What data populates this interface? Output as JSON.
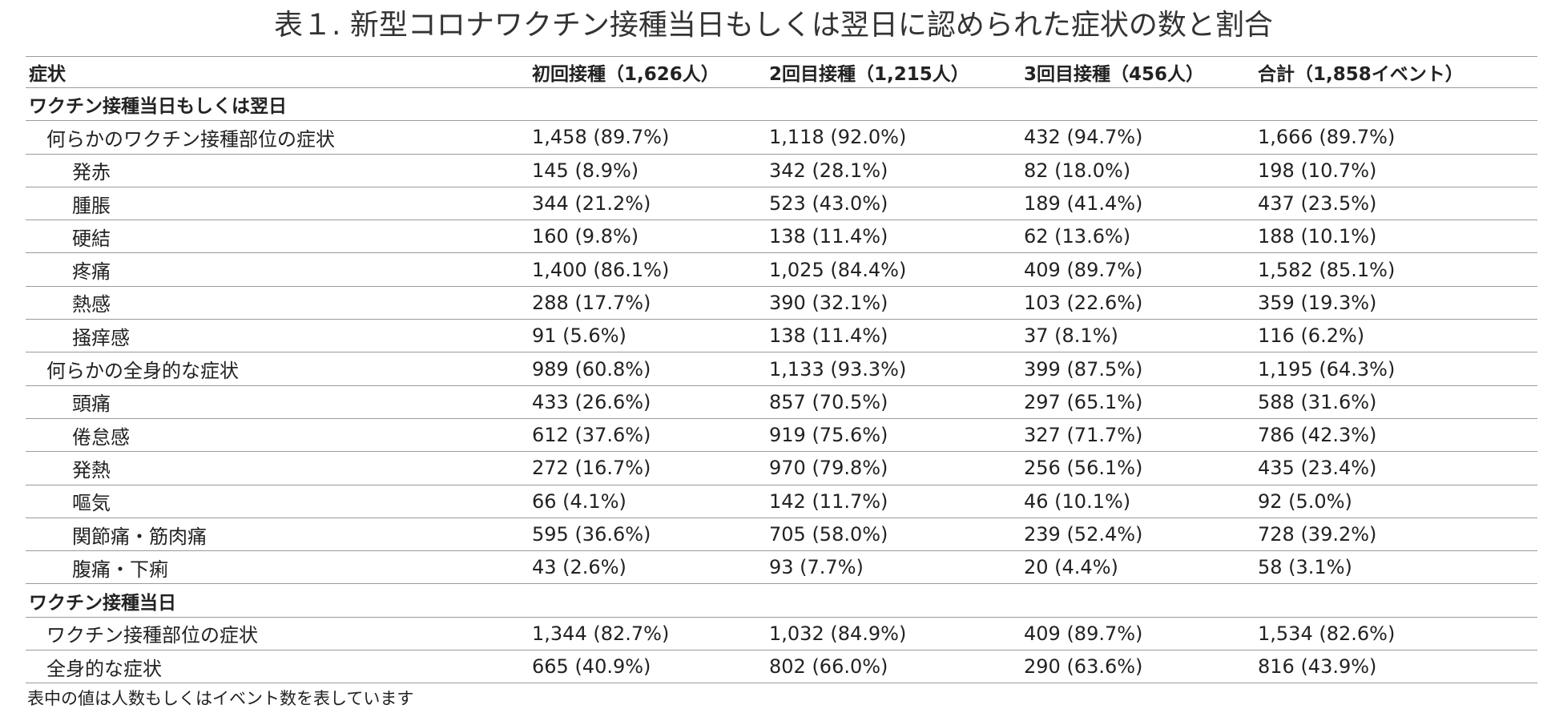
{
  "title": "表１. 新型コロナワクチン接種当日もしくは翌日に認められた症状の数と割合",
  "columns": [
    "症状",
    "初回接種（1,626人）",
    "2回目接種（1,215人）",
    "3回目接種（456人）",
    "合計（1,858イベント）"
  ],
  "sections": [
    {
      "label": "ワクチン接種当日もしくは翌日",
      "rows": [
        {
          "level": 1,
          "label": "何らかのワクチン接種部位の症状",
          "values": [
            "1,458 (89.7%)",
            "1,118 (92.0%)",
            "432 (94.7%)",
            "1,666 (89.7%)"
          ]
        },
        {
          "level": 2,
          "label": "発赤",
          "values": [
            "145 (8.9%)",
            "342 (28.1%)",
            "82 (18.0%)",
            "198 (10.7%)"
          ]
        },
        {
          "level": 2,
          "label": "腫脹",
          "values": [
            "344 (21.2%)",
            "523 (43.0%)",
            "189 (41.4%)",
            "437 (23.5%)"
          ]
        },
        {
          "level": 2,
          "label": "硬結",
          "values": [
            "160 (9.8%)",
            "138 (11.4%)",
            "62 (13.6%)",
            "188 (10.1%)"
          ]
        },
        {
          "level": 2,
          "label": "疼痛",
          "values": [
            "1,400 (86.1%)",
            "1,025 (84.4%)",
            "409 (89.7%)",
            "1,582 (85.1%)"
          ]
        },
        {
          "level": 2,
          "label": "熱感",
          "values": [
            "288 (17.7%)",
            "390 (32.1%)",
            "103 (22.6%)",
            "359 (19.3%)"
          ]
        },
        {
          "level": 2,
          "label": "掻痒感",
          "values": [
            "91 (5.6%)",
            "138 (11.4%)",
            "37 (8.1%)",
            "116 (6.2%)"
          ]
        },
        {
          "level": 1,
          "label": "何らかの全身的な症状",
          "values": [
            "989 (60.8%)",
            "1,133 (93.3%)",
            "399 (87.5%)",
            "1,195 (64.3%)"
          ]
        },
        {
          "level": 2,
          "label": "頭痛",
          "values": [
            "433 (26.6%)",
            "857 (70.5%)",
            "297 (65.1%)",
            "588 (31.6%)"
          ]
        },
        {
          "level": 2,
          "label": "倦怠感",
          "values": [
            "612 (37.6%)",
            "919 (75.6%)",
            "327 (71.7%)",
            "786 (42.3%)"
          ]
        },
        {
          "level": 2,
          "label": "発熱",
          "values": [
            "272 (16.7%)",
            "970 (79.8%)",
            "256 (56.1%)",
            "435 (23.4%)"
          ]
        },
        {
          "level": 2,
          "label": "嘔気",
          "values": [
            "66 (4.1%)",
            "142 (11.7%)",
            "46 (10.1%)",
            "92 (5.0%)"
          ]
        },
        {
          "level": 2,
          "label": "関節痛・筋肉痛",
          "values": [
            "595 (36.6%)",
            "705 (58.0%)",
            "239 (52.4%)",
            "728 (39.2%)"
          ]
        },
        {
          "level": 2,
          "label": "腹痛・下痢",
          "values": [
            "43 (2.6%)",
            "93 (7.7%)",
            "20 (4.4%)",
            "58 (3.1%)"
          ]
        }
      ]
    },
    {
      "label": "ワクチン接種当日",
      "rows": [
        {
          "level": 1,
          "label": "ワクチン接種部位の症状",
          "values": [
            "1,344 (82.7%)",
            "1,032 (84.9%)",
            "409 (89.7%)",
            "1,534 (82.6%)"
          ]
        },
        {
          "level": 1,
          "label": "全身的な症状",
          "values": [
            "665 (40.9%)",
            "802 (66.0%)",
            "290 (63.6%)",
            "816 (43.9%)"
          ]
        }
      ]
    }
  ],
  "footnote": "表中の値は人数もしくはイベント数を表しています"
}
